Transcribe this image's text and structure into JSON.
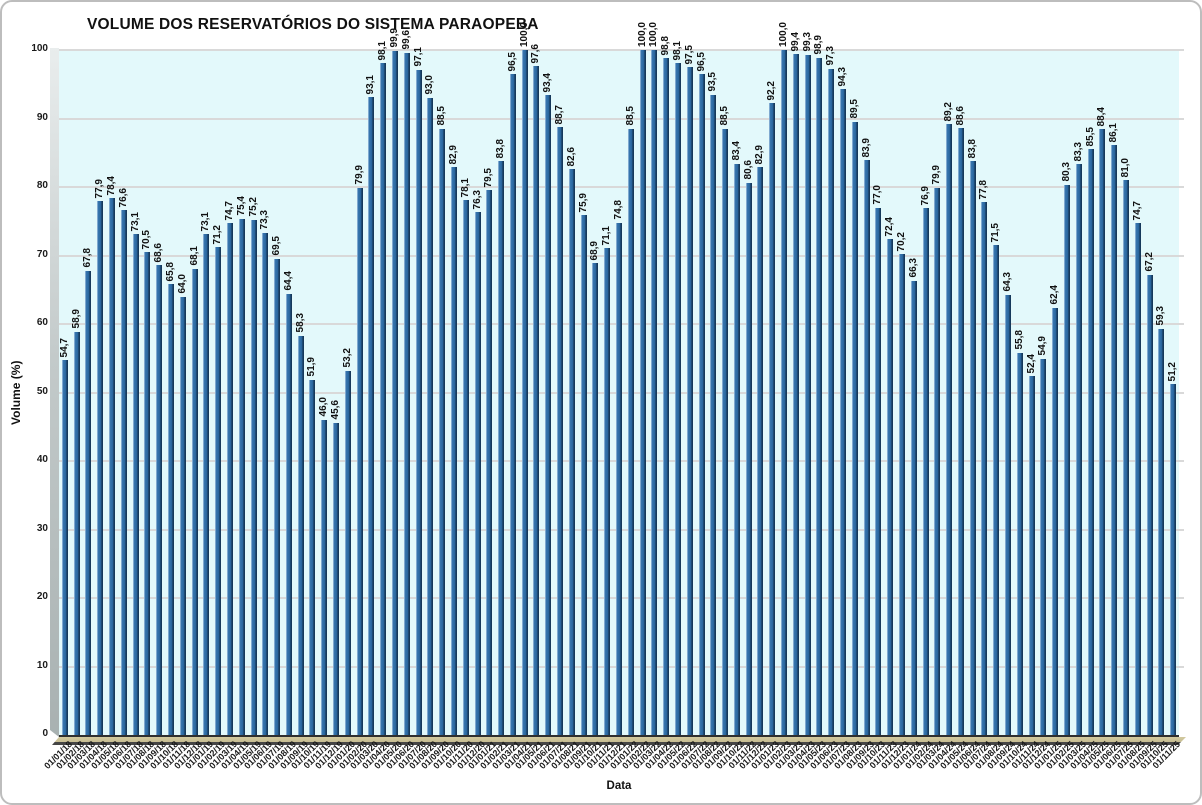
{
  "chart_data": {
    "type": "bar",
    "title": "VOLUME DOS RESERVATÓRIOS DO SISTEMA PARAOPEBA",
    "xlabel": "Data",
    "ylabel": "Volume (%)",
    "ylim": [
      0,
      100
    ],
    "yticks": [
      0,
      10,
      20,
      30,
      40,
      50,
      60,
      70,
      80,
      90,
      100
    ],
    "grid": true,
    "legend": false,
    "value_labels_rotated": true,
    "decimal_separator": ",",
    "colors": {
      "bar_main": "#2b6aa3",
      "bar_highlight": "#7fa9d0",
      "bar_shadow": "#16395b",
      "plot_background": "#e3f9fb",
      "gridline": "#d9d9d9",
      "floor": "#c7bd92",
      "wall": "#b7bfbf",
      "text": "#111111"
    },
    "categories": [
      "01/01/18",
      "01/02/18",
      "01/03/18",
      "01/04/18",
      "01/05/18",
      "01/06/18",
      "01/07/18",
      "01/08/18",
      "01/09/18",
      "01/10/18",
      "01/11/18",
      "01/12/18",
      "01/01/19",
      "01/02/19",
      "01/03/19",
      "01/04/19",
      "01/05/19",
      "01/06/19",
      "01/07/19",
      "01/08/19",
      "01/09/19",
      "01/10/19",
      "01/11/19",
      "01/12/19",
      "01/01/20",
      "01/02/20",
      "01/03/20",
      "01/04/20",
      "01/05/20",
      "01/06/20",
      "01/07/20",
      "01/08/20",
      "01/09/20",
      "01/10/20",
      "01/11/20",
      "01/12/20",
      "01/01/21",
      "01/02/21",
      "01/03/21",
      "01/04/21",
      "01/05/21",
      "01/06/21",
      "01/07/21",
      "01/08/21",
      "01/09/21",
      "01/10/21",
      "01/11/21",
      "01/12/21",
      "01/01/22",
      "01/02/22",
      "01/03/22",
      "01/04/22",
      "01/05/22",
      "01/06/22",
      "01/07/22",
      "01/08/22",
      "01/09/22",
      "01/10/22",
      "01/11/22",
      "01/12/22",
      "01/01/23",
      "01/02/23",
      "01/03/23",
      "01/04/23",
      "01/05/23",
      "01/06/23",
      "01/07/23",
      "01/08/23",
      "01/09/23",
      "01/10/23",
      "01/11/23",
      "01/12/23",
      "01/01/24",
      "01/02/24",
      "01/03/24",
      "01/04/24",
      "01/05/24",
      "01/06/24",
      "01/07/24",
      "01/08/24",
      "01/09/24",
      "01/10/24",
      "01/11/24",
      "01/12/24",
      "01/01/25",
      "01/02/25",
      "01/03/25",
      "01/04/25",
      "01/05/25",
      "01/06/25",
      "01/07/25",
      "01/08/25",
      "01/09/25",
      "01/10/25",
      "01/11/25"
    ],
    "values": [
      54.7,
      58.9,
      67.8,
      77.9,
      78.4,
      76.6,
      73.1,
      70.5,
      68.6,
      65.8,
      64.0,
      68.1,
      73.1,
      71.2,
      74.7,
      75.4,
      75.2,
      73.3,
      69.5,
      64.4,
      58.3,
      51.9,
      46.0,
      45.6,
      53.2,
      79.9,
      93.1,
      98.1,
      99.9,
      99.6,
      97.1,
      93.0,
      88.5,
      82.9,
      78.1,
      76.3,
      79.5,
      83.8,
      96.5,
      100.0,
      97.6,
      93.4,
      88.7,
      82.6,
      75.9,
      68.9,
      71.1,
      74.8,
      88.5,
      100.0,
      100.0,
      98.8,
      98.1,
      97.5,
      96.5,
      93.5,
      88.5,
      83.4,
      80.6,
      82.9,
      92.2,
      100.0,
      99.4,
      99.3,
      98.9,
      97.3,
      94.3,
      89.5,
      83.9,
      77.0,
      72.4,
      70.2,
      66.3,
      76.9,
      79.9,
      89.2,
      88.6,
      83.8,
      77.8,
      71.5,
      64.3,
      55.8,
      52.4,
      54.9,
      62.4,
      80.3,
      83.3,
      85.5,
      88.4,
      86.1,
      81.0,
      74.7,
      67.2,
      59.3,
      51.2
    ]
  }
}
